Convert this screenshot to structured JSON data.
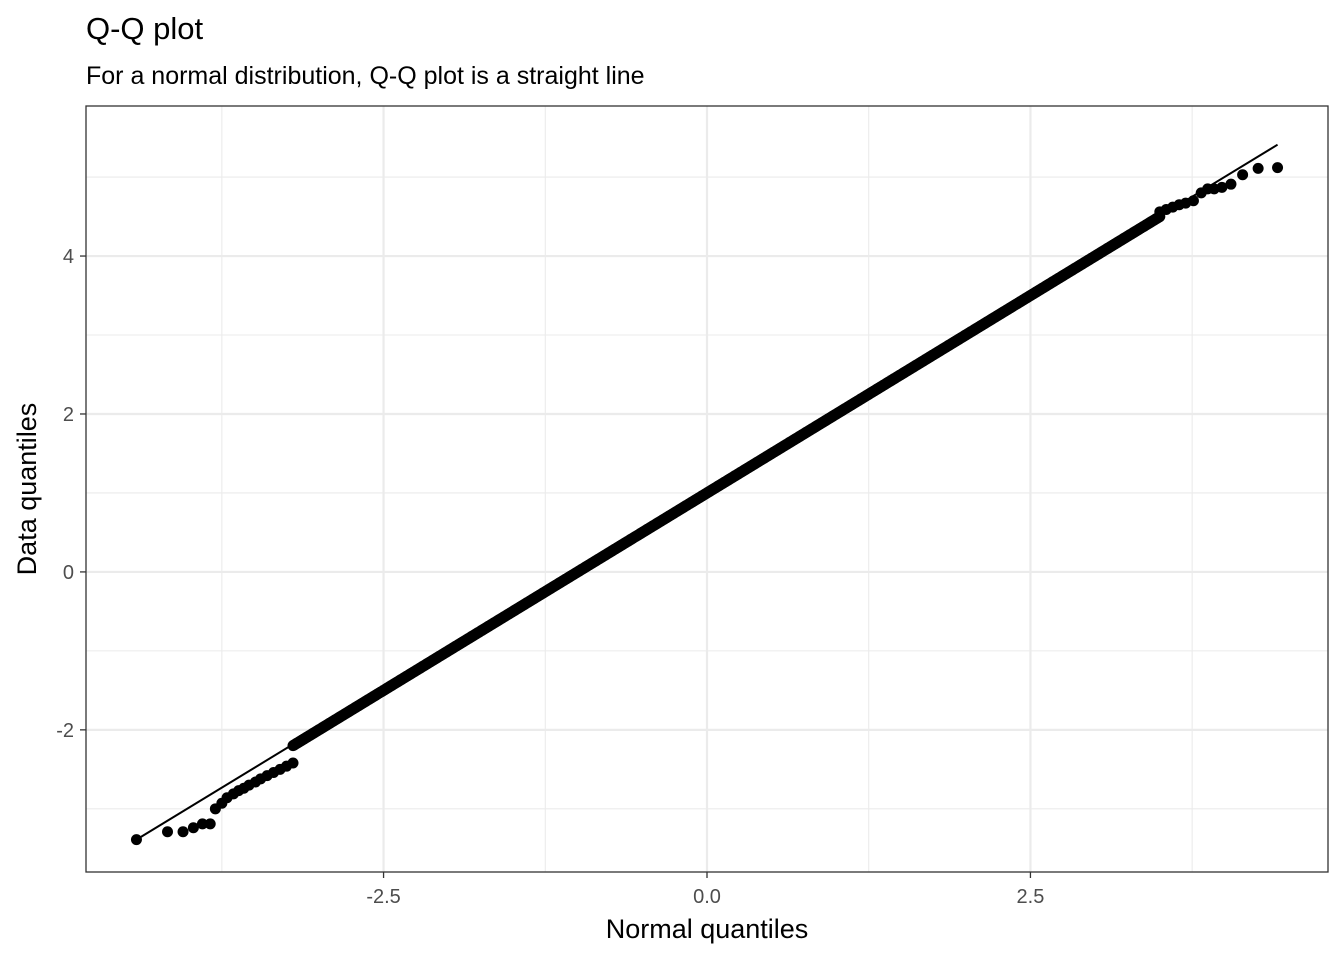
{
  "chart_data": {
    "type": "scatter",
    "title": "Q-Q plot",
    "subtitle": "For a normal distribution, Q-Q plot is a straight line",
    "xlabel": "Normal quantiles",
    "ylabel": "Data quantiles",
    "xlim": [
      -4.8,
      4.8
    ],
    "ylim": [
      -3.8,
      5.9
    ],
    "x_ticks": [
      -2.5,
      0.0,
      2.5
    ],
    "x_tick_labels": [
      "-2.5",
      "0.0",
      "2.5"
    ],
    "y_ticks": [
      -2,
      0,
      2,
      4
    ],
    "y_tick_labels": [
      "-2",
      "0",
      "2",
      "4"
    ],
    "grid": true,
    "reference_line": {
      "x": [
        -4.41,
        4.41
      ],
      "y": [
        -3.39,
        5.41
      ]
    },
    "series": [
      {
        "tail_points": [
          {
            "x": -4.41,
            "y": -3.39
          },
          {
            "x": -4.17,
            "y": -3.29
          },
          {
            "x": -4.05,
            "y": -3.29
          },
          {
            "x": -3.97,
            "y": -3.24
          },
          {
            "x": -3.9,
            "y": -3.19
          },
          {
            "x": -3.84,
            "y": -3.19
          },
          {
            "x": -3.8,
            "y": -3.0
          },
          {
            "x": -3.75,
            "y": -2.93
          },
          {
            "x": -3.71,
            "y": -2.86
          },
          {
            "x": -3.66,
            "y": -2.81
          },
          {
            "x": -3.62,
            "y": -2.77
          },
          {
            "x": -3.58,
            "y": -2.74
          },
          {
            "x": -3.54,
            "y": -2.7
          },
          {
            "x": -3.49,
            "y": -2.66
          },
          {
            "x": -3.45,
            "y": -2.62
          },
          {
            "x": -3.4,
            "y": -2.58
          },
          {
            "x": -3.35,
            "y": -2.54
          },
          {
            "x": -3.3,
            "y": -2.5
          },
          {
            "x": -3.25,
            "y": -2.46
          },
          {
            "x": -3.2,
            "y": -2.42
          },
          {
            "x": 3.5,
            "y": 4.56
          },
          {
            "x": 3.55,
            "y": 4.59
          },
          {
            "x": 3.6,
            "y": 4.62
          },
          {
            "x": 3.65,
            "y": 4.65
          },
          {
            "x": 3.7,
            "y": 4.67
          },
          {
            "x": 3.76,
            "y": 4.7
          },
          {
            "x": 3.82,
            "y": 4.8
          },
          {
            "x": 3.87,
            "y": 4.85
          },
          {
            "x": 3.92,
            "y": 4.85
          },
          {
            "x": 3.98,
            "y": 4.87
          },
          {
            "x": 4.05,
            "y": 4.91
          },
          {
            "x": 4.14,
            "y": 5.03
          },
          {
            "x": 4.26,
            "y": 5.11
          },
          {
            "x": 4.41,
            "y": 5.12
          }
        ],
        "bulk_segment": {
          "x_start": -3.2,
          "x_end": 3.5,
          "slope": 1.0,
          "intercept": 1.0
        }
      }
    ]
  }
}
